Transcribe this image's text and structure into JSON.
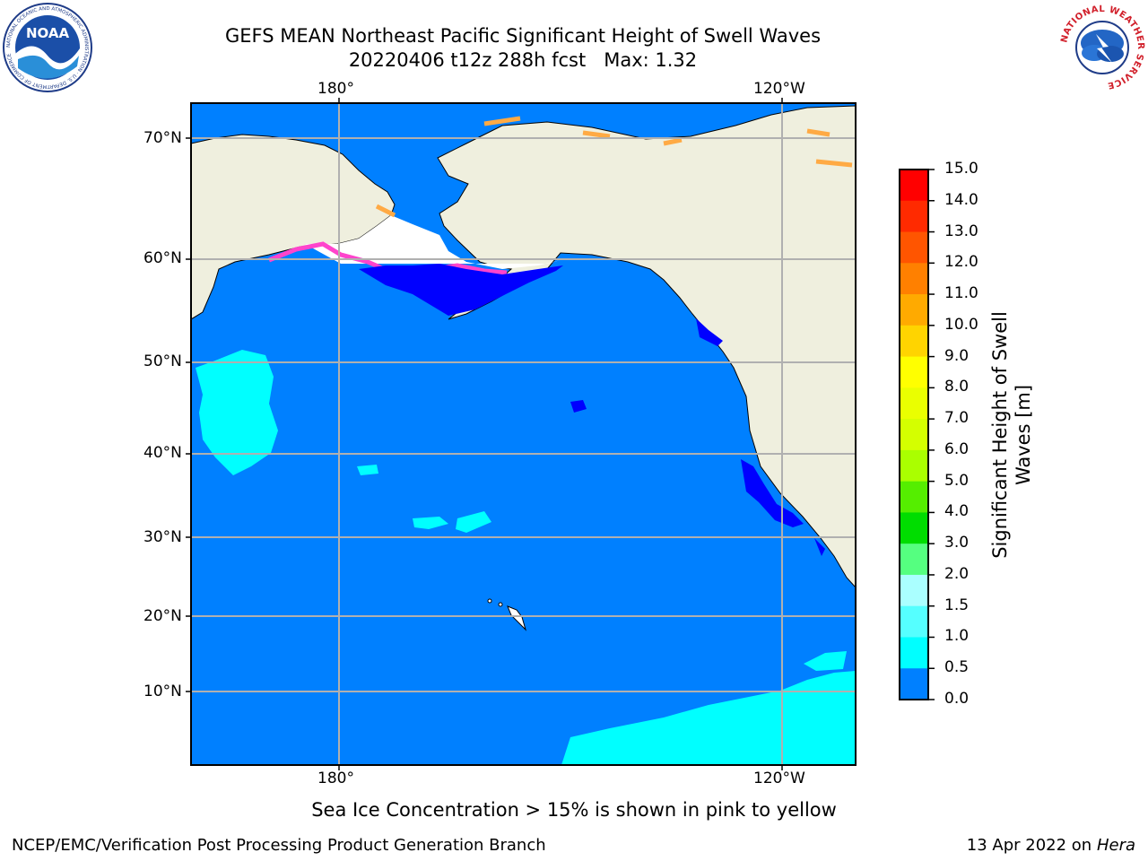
{
  "header": {
    "title_line1": "GEFS MEAN Northeast Pacific Significant Height of Swell Waves",
    "title_line2": "20220406 t12z 288h fcst   Max: 1.32"
  },
  "logos": {
    "noaa_text": "NOAA",
    "noaa_ring_text": "NATIONAL OCEANIC AND ATMOSPHERIC ADMINISTRATION · U.S. DEPARTMENT OF COMMERCE",
    "nws_ring_text": "NATIONAL WEATHER SERVICE"
  },
  "map": {
    "lon_ticks": [
      "180°",
      "120°W"
    ],
    "lat_ticks": [
      "70°N",
      "60°N",
      "50°N",
      "40°N",
      "30°N",
      "20°N",
      "10°N"
    ],
    "colors": {
      "ocean_low": "#0080ff",
      "ocean_min": "#0000ff",
      "ocean_mid": "#00ffff",
      "land": "#efefde",
      "ice_pink": "#ff44cc",
      "ice_orange": "#ffaa44"
    }
  },
  "colorbar": {
    "label_line1": "Significant Height of Swell",
    "label_line2": "Waves [m]",
    "ticks": [
      "15.0",
      "14.0",
      "13.0",
      "12.0",
      "11.0",
      "10.0",
      "9.0",
      "8.0",
      "7.0",
      "6.0",
      "5.0",
      "4.0",
      "3.0",
      "2.0",
      "1.5",
      "1.0",
      "0.5",
      "0.0"
    ],
    "colors": [
      "#ff0000",
      "#ff2a00",
      "#ff5500",
      "#ff8000",
      "#ffaa00",
      "#ffd400",
      "#ffff00",
      "#eaff00",
      "#d4ff00",
      "#aaff00",
      "#55ee00",
      "#00dd00",
      "#55ff80",
      "#aaffff",
      "#55ffff",
      "#00ffff",
      "#0080ff",
      "#0000ff"
    ]
  },
  "caption": "Sea Ice Concentration > 15% is shown in pink to yellow",
  "footer": {
    "left": "NCEP/EMC/Verification Post Processing Product Generation Branch",
    "right_date": "13 Apr 2022 on ",
    "right_host": "Hera"
  }
}
